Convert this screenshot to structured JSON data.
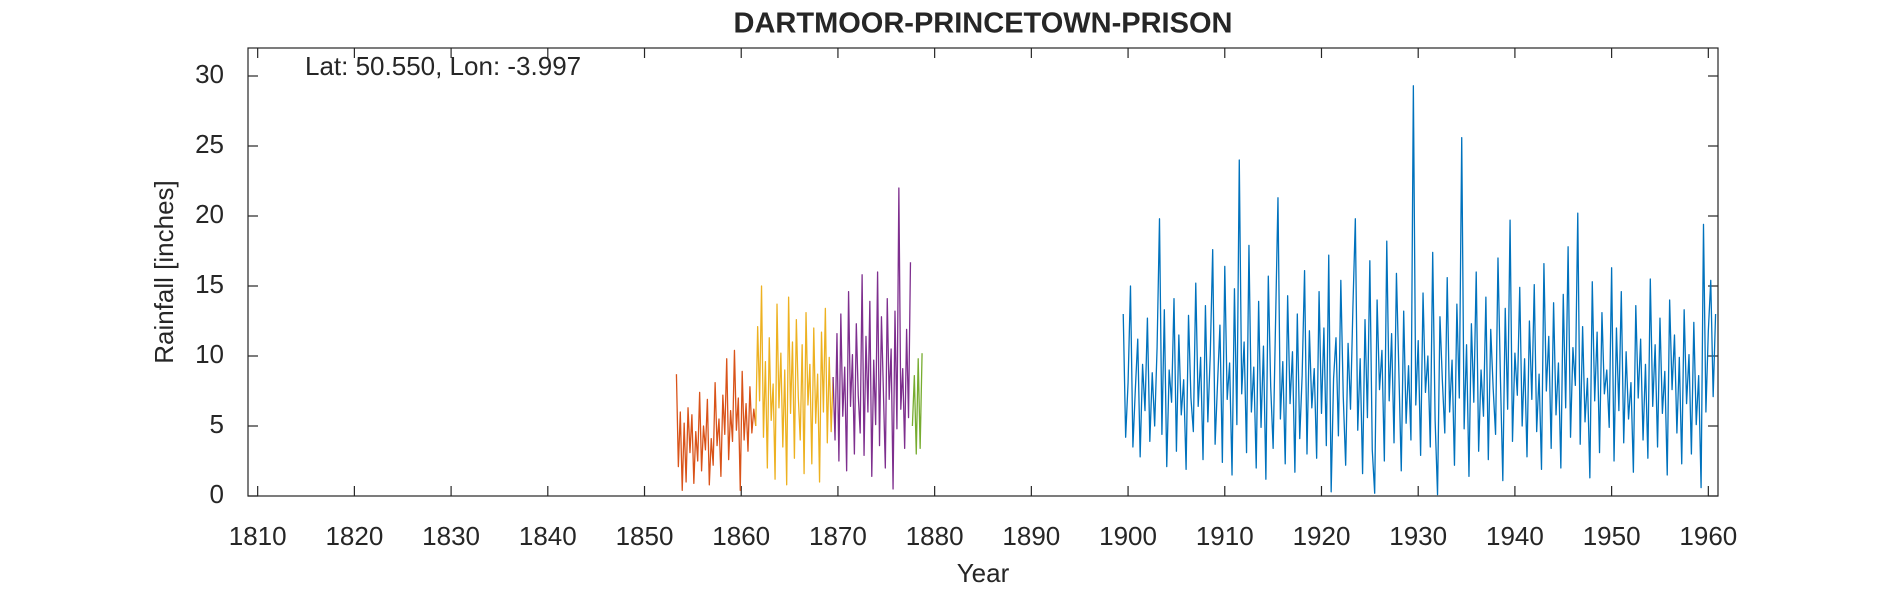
{
  "chart_data": {
    "type": "line",
    "title": "DARTMOOR-PRINCETOWN-PRISON",
    "annotation": "Lat: 50.550, Lon: -3.997",
    "xlabel": "Year",
    "ylabel": "Rainfall [inches]",
    "xlim": [
      1809,
      1961
    ],
    "xticks": [
      1810,
      1820,
      1830,
      1840,
      1850,
      1860,
      1870,
      1880,
      1890,
      1900,
      1910,
      1920,
      1930,
      1940,
      1950,
      1960
    ],
    "ylim": [
      0,
      32
    ],
    "yticks": [
      0,
      5,
      10,
      15,
      20,
      25,
      30
    ],
    "series": [
      {
        "color": "#0072bd",
        "x": [
          1899.5,
          1899.75,
          1900,
          1900.25,
          1900.5,
          1900.75,
          1901,
          1901.25,
          1901.5,
          1901.75,
          1902,
          1902.25,
          1902.5,
          1902.75,
          1903,
          1903.25,
          1903.5,
          1903.75,
          1904,
          1904.25,
          1904.5,
          1904.75,
          1905,
          1905.25,
          1905.5,
          1905.75,
          1906,
          1906.25,
          1906.5,
          1906.75,
          1907,
          1907.25,
          1907.5,
          1907.75,
          1908,
          1908.25,
          1908.5,
          1908.75,
          1909,
          1909.25,
          1909.5,
          1909.75,
          1910,
          1910.25,
          1910.5,
          1910.75,
          1911,
          1911.25,
          1911.5,
          1911.75,
          1912,
          1912.25,
          1912.5,
          1912.75,
          1913,
          1913.25,
          1913.5,
          1913.75,
          1914,
          1914.25,
          1914.5,
          1914.75,
          1915,
          1915.25,
          1915.5,
          1915.75,
          1916,
          1916.25,
          1916.5,
          1916.75,
          1917,
          1917.25,
          1917.5,
          1917.75,
          1918,
          1918.25,
          1918.5,
          1918.75,
          1919,
          1919.25,
          1919.5,
          1919.75,
          1920,
          1920.25,
          1920.5,
          1920.75,
          1921,
          1921.25,
          1921.5,
          1921.75,
          1922,
          1922.25,
          1922.5,
          1922.75,
          1923,
          1923.25,
          1923.5,
          1923.75,
          1924,
          1924.25,
          1924.5,
          1924.75,
          1925,
          1925.25,
          1925.5,
          1925.75,
          1926,
          1926.25,
          1926.5,
          1926.75,
          1927,
          1927.25,
          1927.5,
          1927.75,
          1928,
          1928.25,
          1928.5,
          1928.75,
          1929,
          1929.25,
          1929.5,
          1929.75,
          1930,
          1930.25,
          1930.5,
          1930.75,
          1931,
          1931.25,
          1931.5,
          1931.75,
          1932,
          1932.25,
          1932.5,
          1932.75,
          1933,
          1933.25,
          1933.5,
          1933.75,
          1934,
          1934.25,
          1934.5,
          1934.75,
          1935,
          1935.25,
          1935.5,
          1935.75,
          1936,
          1936.25,
          1936.5,
          1936.75,
          1937,
          1937.25,
          1937.5,
          1937.75,
          1938,
          1938.25,
          1938.5,
          1938.75,
          1939,
          1939.25,
          1939.5,
          1939.75,
          1940,
          1940.25,
          1940.5,
          1940.75,
          1941,
          1941.25,
          1941.5,
          1941.75,
          1942,
          1942.25,
          1942.5,
          1942.75,
          1943,
          1943.25,
          1943.5,
          1943.75,
          1944,
          1944.25,
          1944.5,
          1944.75,
          1945,
          1945.25,
          1945.5,
          1945.75,
          1946,
          1946.25,
          1946.5,
          1946.75,
          1947,
          1947.25,
          1947.5,
          1947.75,
          1948,
          1948.25,
          1948.5,
          1948.75,
          1949,
          1949.25,
          1949.5,
          1949.75,
          1950,
          1950.25,
          1950.5,
          1950.75,
          1951,
          1951.25,
          1951.5,
          1951.75,
          1952,
          1952.25,
          1952.5,
          1952.75,
          1953,
          1953.25,
          1953.5,
          1953.75,
          1954,
          1954.25,
          1954.5,
          1954.75,
          1955,
          1955.25,
          1955.5,
          1955.75,
          1956,
          1956.25,
          1956.5,
          1956.75,
          1957,
          1957.25,
          1957.5,
          1957.75,
          1958,
          1958.25,
          1958.5,
          1958.75,
          1959,
          1959.25,
          1959.5,
          1959.75,
          1960,
          1960.25,
          1960.5,
          1960.75
        ],
        "values": [
          13.0,
          4.2,
          8.1,
          15.0,
          3.5,
          7.6,
          11.2,
          2.8,
          9.4,
          6.1,
          12.7,
          3.9,
          8.8,
          5.0,
          10.6,
          19.8,
          4.4,
          13.3,
          2.1,
          9.0,
          6.7,
          14.1,
          3.2,
          11.5,
          5.8,
          8.3,
          1.9,
          12.9,
          7.0,
          4.6,
          15.2,
          6.4,
          9.9,
          2.6,
          13.6,
          5.3,
          10.1,
          17.6,
          3.7,
          8.0,
          12.2,
          2.4,
          16.4,
          6.9,
          9.5,
          1.5,
          14.8,
          5.1,
          24.0,
          7.3,
          11.0,
          3.1,
          17.9,
          6.0,
          9.2,
          2.0,
          13.9,
          4.9,
          10.7,
          1.2,
          15.7,
          7.8,
          3.4,
          12.4,
          21.3,
          5.5,
          9.6,
          2.3,
          14.3,
          6.6,
          10.3,
          1.7,
          13.0,
          4.1,
          8.6,
          16.1,
          3.0,
          11.8,
          6.3,
          9.1,
          2.7,
          14.6,
          5.9,
          12.0,
          3.6,
          17.2,
          0.3,
          8.4,
          11.3,
          4.3,
          15.4,
          7.1,
          2.2,
          10.9,
          6.2,
          13.5,
          19.8,
          4.7,
          9.8,
          1.6,
          12.6,
          5.6,
          16.8,
          3.3,
          0.2,
          14.0,
          7.6,
          10.4,
          2.5,
          18.2,
          6.8,
          11.6,
          3.8,
          15.9,
          8.9,
          1.8,
          13.2,
          5.2,
          9.3,
          4.0,
          29.3,
          6.5,
          11.1,
          2.9,
          14.5,
          7.4,
          10.0,
          3.5,
          17.4,
          5.4,
          0.1,
          12.8,
          8.2,
          4.5,
          15.6,
          6.0,
          9.7,
          2.2,
          13.7,
          7.0,
          25.6,
          4.8,
          10.8,
          1.4,
          12.3,
          6.7,
          16.0,
          3.2,
          9.0,
          5.7,
          14.2,
          2.6,
          11.9,
          7.7,
          4.4,
          17.0,
          8.5,
          1.1,
          13.4,
          6.2,
          19.7,
          3.9,
          10.2,
          7.2,
          14.9,
          5.0,
          9.8,
          2.8,
          12.5,
          6.9,
          15.1,
          4.6,
          8.7,
          1.9,
          16.6,
          7.5,
          11.4,
          3.4,
          13.8,
          5.8,
          9.5,
          2.0,
          14.4,
          6.3,
          17.8,
          4.2,
          10.6,
          7.9,
          20.2,
          3.7,
          12.1,
          5.3,
          8.4,
          1.3,
          15.3,
          6.8,
          11.7,
          3.1,
          13.1,
          7.3,
          9.0,
          4.9,
          16.3,
          2.5,
          12.0,
          6.1,
          14.6,
          3.8,
          10.3,
          5.5,
          8.1,
          1.7,
          13.6,
          7.0,
          11.2,
          4.0,
          9.4,
          2.7,
          15.5,
          6.4,
          10.8,
          3.5,
          12.7,
          5.9,
          8.9,
          1.5,
          14.0,
          7.6,
          11.5,
          4.5,
          9.9,
          2.3,
          13.3,
          6.6,
          10.1,
          3.0,
          12.4,
          5.1,
          8.6,
          0.6,
          19.4,
          6.0,
          11.8,
          15.4,
          7.1,
          13.0
        ]
      },
      {
        "color": "#d95319",
        "x": [
          1853.3,
          1853.5,
          1853.7,
          1853.9,
          1854.1,
          1854.3,
          1854.5,
          1854.7,
          1854.9,
          1855.1,
          1855.3,
          1855.5,
          1855.7,
          1855.9,
          1856.1,
          1856.3,
          1856.5,
          1856.7,
          1856.9,
          1857.1,
          1857.3,
          1857.5,
          1857.7,
          1857.9,
          1858.1,
          1858.3,
          1858.5,
          1858.7,
          1858.9,
          1859.1,
          1859.3,
          1859.5,
          1859.7,
          1859.9,
          1860.1,
          1860.3,
          1860.5,
          1860.7,
          1860.9,
          1861.1,
          1861.3,
          1861.5
        ],
        "values": [
          8.7,
          2.1,
          6.0,
          0.4,
          5.2,
          1.0,
          6.3,
          3.1,
          5.8,
          0.9,
          4.6,
          2.5,
          7.4,
          1.8,
          5.0,
          3.3,
          6.9,
          0.8,
          4.1,
          2.2,
          8.1,
          3.6,
          5.5,
          1.4,
          7.2,
          4.4,
          9.8,
          2.6,
          6.1,
          3.9,
          10.4,
          4.7,
          7.0,
          0.4,
          8.9,
          4.0,
          6.6,
          3.2,
          7.8,
          4.5,
          6.2,
          5.0
        ]
      },
      {
        "color": "#edb120",
        "x": [
          1861.5,
          1861.7,
          1861.9,
          1862.1,
          1862.3,
          1862.5,
          1862.7,
          1862.9,
          1863.1,
          1863.3,
          1863.5,
          1863.7,
          1863.9,
          1864.1,
          1864.3,
          1864.5,
          1864.7,
          1864.9,
          1865.1,
          1865.3,
          1865.5,
          1865.7,
          1865.9,
          1866.1,
          1866.3,
          1866.5,
          1866.7,
          1866.9,
          1867.1,
          1867.3,
          1867.5,
          1867.7,
          1867.9,
          1868.1,
          1868.3,
          1868.5,
          1868.7,
          1868.9,
          1869.1,
          1869.3,
          1869.5
        ],
        "values": [
          5.0,
          12.1,
          6.8,
          15.0,
          4.2,
          9.6,
          2.0,
          11.3,
          5.4,
          8.0,
          1.2,
          13.7,
          6.3,
          10.2,
          3.5,
          9.0,
          0.8,
          14.2,
          5.9,
          11.0,
          2.7,
          12.6,
          7.1,
          4.0,
          10.8,
          1.6,
          13.1,
          6.5,
          9.4,
          2.3,
          12.0,
          5.2,
          8.7,
          1.0,
          11.7,
          6.0,
          13.4,
          3.8,
          9.9,
          4.6,
          8.5
        ]
      },
      {
        "color": "#7e2f8e",
        "x": [
          1869.5,
          1869.7,
          1869.9,
          1870.1,
          1870.3,
          1870.5,
          1870.7,
          1870.9,
          1871.1,
          1871.3,
          1871.5,
          1871.7,
          1871.9,
          1872.1,
          1872.3,
          1872.5,
          1872.7,
          1872.9,
          1873.1,
          1873.3,
          1873.5,
          1873.7,
          1873.9,
          1874.1,
          1874.3,
          1874.5,
          1874.7,
          1874.9,
          1875.1,
          1875.3,
          1875.5,
          1875.7,
          1875.9,
          1876.1,
          1876.3,
          1876.5,
          1876.7,
          1876.9,
          1877.1,
          1877.3,
          1877.5
        ],
        "values": [
          8.5,
          4.0,
          11.6,
          2.5,
          13.0,
          5.7,
          9.2,
          1.8,
          14.6,
          6.4,
          10.1,
          3.0,
          12.3,
          7.2,
          4.5,
          15.8,
          2.9,
          11.4,
          6.0,
          13.9,
          1.4,
          9.7,
          5.1,
          16.0,
          3.6,
          12.8,
          7.5,
          2.0,
          14.1,
          6.9,
          10.5,
          0.5,
          13.2,
          4.8,
          22.0,
          6.2,
          9.1,
          3.4,
          11.9,
          5.6,
          16.7
        ]
      },
      {
        "color": "#77ac30",
        "x": [
          1877.7,
          1877.9,
          1878.1,
          1878.3,
          1878.5,
          1878.7
        ],
        "values": [
          5.0,
          8.6,
          3.0,
          9.8,
          3.4,
          10.2
        ]
      }
    ]
  }
}
